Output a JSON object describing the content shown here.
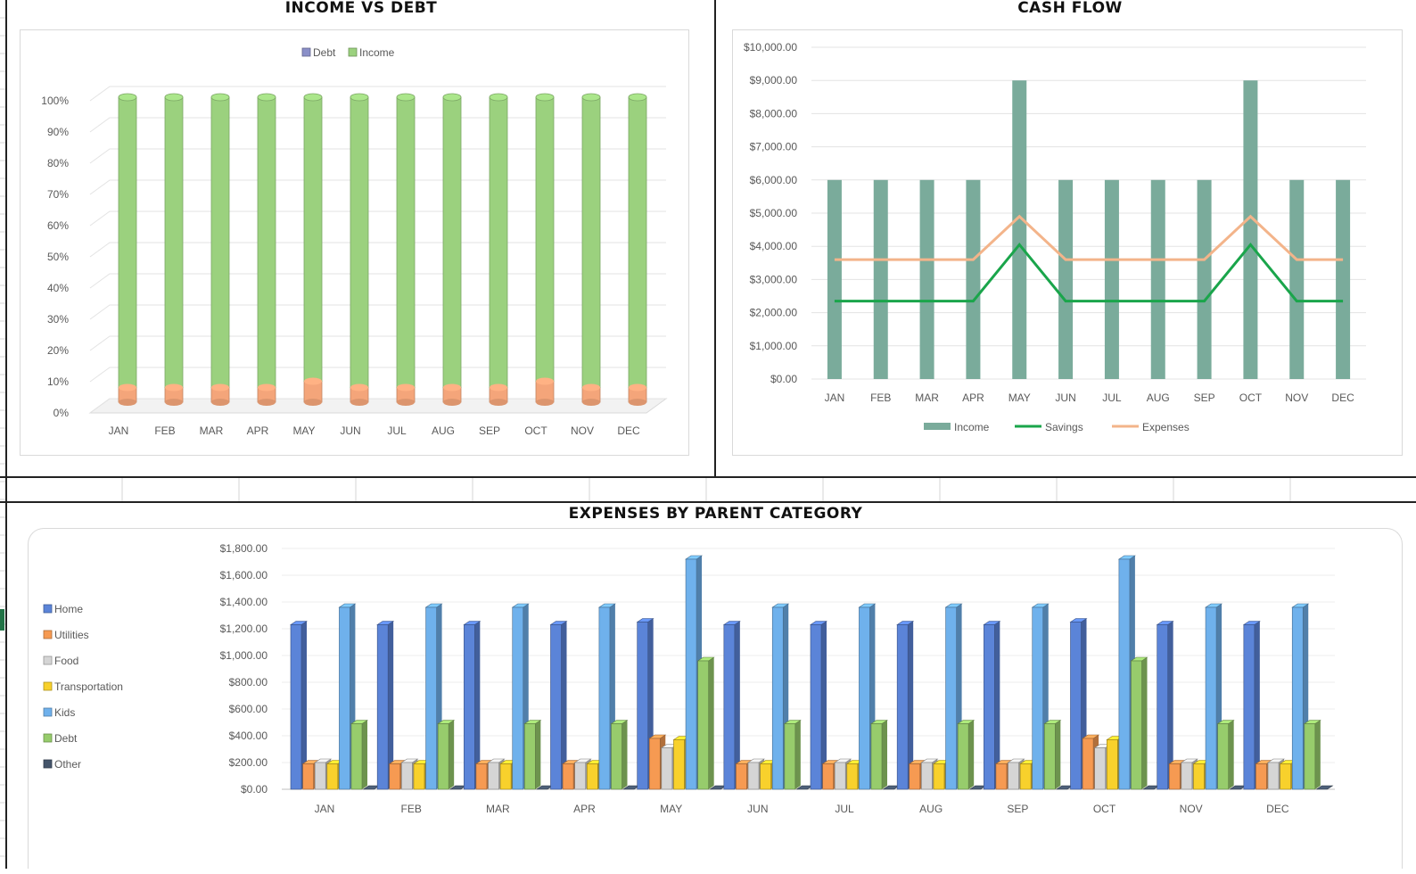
{
  "panels": {
    "income_vs_debt_title": "INCOME VS DEBT",
    "cash_flow_title": "CASH FLOW",
    "expenses_title": "EXPENSES BY PARENT CATEGORY"
  },
  "colors": {
    "income_green": "#9bd17e",
    "debt_orange": "#f4a57a",
    "cash_income_bar": "#7aab9b",
    "savings_line": "#1aa54b",
    "expenses_line": "#f3b48a",
    "home": "#5b84d8",
    "utilities": "#f69a52",
    "food": "#d5d5d5",
    "transportation": "#f8d12c",
    "kids": "#6fb1ec",
    "debt": "#97cc6c",
    "other": "#44546a"
  },
  "chart_data": [
    {
      "id": "income-vs-debt",
      "type": "bar",
      "stacked": "percent",
      "title": "INCOME VS DEBT",
      "categories": [
        "JAN",
        "FEB",
        "MAR",
        "APR",
        "MAY",
        "JUN",
        "JUL",
        "AUG",
        "SEP",
        "OCT",
        "NOV",
        "DEC"
      ],
      "series": [
        {
          "name": "Debt",
          "values": [
            7,
            7,
            7,
            7,
            9,
            7,
            7,
            7,
            7,
            9,
            7,
            7
          ]
        },
        {
          "name": "Income",
          "values": [
            93,
            93,
            93,
            93,
            91,
            93,
            93,
            93,
            93,
            91,
            93,
            93
          ]
        }
      ],
      "y_ticks": [
        "0%",
        "10%",
        "20%",
        "30%",
        "40%",
        "50%",
        "60%",
        "70%",
        "80%",
        "90%",
        "100%"
      ],
      "ylim": [
        0,
        100
      ],
      "legend": "top",
      "grid": true
    },
    {
      "id": "cash-flow",
      "type": "bar",
      "title": "CASH FLOW",
      "categories": [
        "JAN",
        "FEB",
        "MAR",
        "APR",
        "MAY",
        "JUN",
        "JUL",
        "AUG",
        "SEP",
        "OCT",
        "NOV",
        "DEC"
      ],
      "series": [
        {
          "name": "Income",
          "type": "bar",
          "values": [
            6000,
            6000,
            6000,
            6000,
            9000,
            6000,
            6000,
            6000,
            6000,
            9000,
            6000,
            6000
          ]
        },
        {
          "name": "Savings",
          "type": "line",
          "values": [
            2350,
            2350,
            2350,
            2350,
            4050,
            2350,
            2350,
            2350,
            2350,
            4050,
            2350,
            2350
          ]
        },
        {
          "name": "Expenses",
          "type": "line",
          "values": [
            3600,
            3600,
            3600,
            3600,
            4900,
            3600,
            3600,
            3600,
            3600,
            4900,
            3600,
            3600
          ]
        }
      ],
      "y_ticks": [
        "$0.00",
        "$1,000.00",
        "$2,000.00",
        "$3,000.00",
        "$4,000.00",
        "$5,000.00",
        "$6,000.00",
        "$7,000.00",
        "$8,000.00",
        "$9,000.00",
        "$10,000.00"
      ],
      "ylim": [
        0,
        10000
      ],
      "legend": "bottom",
      "grid": true
    },
    {
      "id": "expenses-by-parent-category",
      "type": "bar",
      "title": "EXPENSES BY PARENT CATEGORY",
      "categories": [
        "JAN",
        "FEB",
        "MAR",
        "APR",
        "MAY",
        "JUN",
        "JUL",
        "AUG",
        "SEP",
        "OCT",
        "NOV",
        "DEC"
      ],
      "series": [
        {
          "name": "Home",
          "values": [
            1230,
            1230,
            1230,
            1230,
            1250,
            1230,
            1230,
            1230,
            1230,
            1250,
            1230,
            1230
          ]
        },
        {
          "name": "Utilities",
          "values": [
            190,
            190,
            190,
            190,
            380,
            190,
            190,
            190,
            190,
            380,
            190,
            190
          ]
        },
        {
          "name": "Food",
          "values": [
            200,
            200,
            200,
            200,
            310,
            200,
            200,
            200,
            200,
            310,
            200,
            200
          ]
        },
        {
          "name": "Transportation",
          "values": [
            190,
            190,
            190,
            190,
            370,
            190,
            190,
            190,
            190,
            370,
            190,
            190
          ]
        },
        {
          "name": "Kids",
          "values": [
            1360,
            1360,
            1360,
            1360,
            1720,
            1360,
            1360,
            1360,
            1360,
            1720,
            1360,
            1360
          ]
        },
        {
          "name": "Debt",
          "values": [
            490,
            490,
            490,
            490,
            960,
            490,
            490,
            490,
            490,
            960,
            490,
            490
          ]
        },
        {
          "name": "Other",
          "values": [
            0,
            0,
            0,
            0,
            0,
            0,
            0,
            0,
            0,
            0,
            0,
            0
          ]
        }
      ],
      "y_ticks": [
        "$0.00",
        "$200.00",
        "$400.00",
        "$600.00",
        "$800.00",
        "$1,000.00",
        "$1,200.00",
        "$1,400.00",
        "$1,600.00",
        "$1,800.00"
      ],
      "ylim": [
        0,
        1800
      ],
      "legend": "left",
      "grid": true
    }
  ]
}
